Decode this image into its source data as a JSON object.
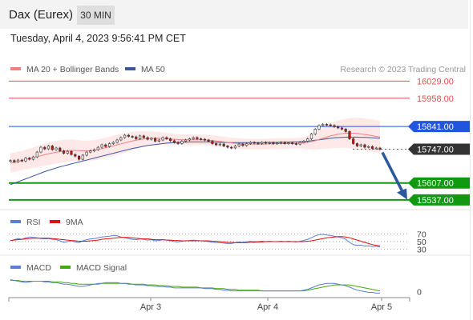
{
  "header": {
    "title": "Dax (Eurex)",
    "timeframe": "30 MIN",
    "datetime": "Tuesday, April 4, 2023 9:56:41 PM CET"
  },
  "colors": {
    "ma20": "#f08080",
    "ma50": "#3b5998",
    "bollinger_fill": "#fde0e0",
    "resistance": "#e05050",
    "pivot": "#2255dd",
    "support": "#119911",
    "last_price_box": "#333333",
    "arrow": "#2a5a9a",
    "rsi": "#5b7fd6",
    "rsi_ma": "#dd1111",
    "macd": "#5b7fd6",
    "macd_signal": "#44aa11",
    "up_candle": "#ffffff",
    "down_candle": "#cc1111"
  },
  "chart_data": [
    {
      "type": "line",
      "panel": "price",
      "legend": [
        {
          "name": "MA 20 + Bollinger Bands",
          "color": "#f08080"
        },
        {
          "name": "MA 50",
          "color": "#3b5998"
        }
      ],
      "watermark": "Research © 2023 Trading Central",
      "x_ticks": [
        "Apr 3",
        "Apr 4",
        "Apr 5"
      ],
      "ylim": [
        15520,
        16050
      ],
      "levels": [
        {
          "label": "16029.00",
          "value": 16029,
          "kind": "resistance"
        },
        {
          "label": "15958.00",
          "value": 15958,
          "kind": "resistance"
        },
        {
          "label": "15841.00",
          "value": 15841,
          "kind": "pivot"
        },
        {
          "label": "15747.00",
          "value": 15747,
          "kind": "last"
        },
        {
          "label": "15607.00",
          "value": 15607,
          "kind": "support"
        },
        {
          "label": "15537.00",
          "value": 15537,
          "kind": "support"
        }
      ],
      "closes": [
        15700,
        15695,
        15702,
        15698,
        15710,
        15705,
        15715,
        15735,
        15755,
        15748,
        15760,
        15745,
        15752,
        15740,
        15730,
        15738,
        15725,
        15718,
        15705,
        15722,
        15735,
        15740,
        15745,
        15755,
        15765,
        15758,
        15770,
        15775,
        15785,
        15795,
        15805,
        15800,
        15798,
        15790,
        15802,
        15795,
        15788,
        15792,
        15780,
        15785,
        15795,
        15790,
        15782,
        15775,
        15770,
        15780,
        15785,
        15790,
        15795,
        15790,
        15788,
        15785,
        15780,
        15770,
        15765,
        15768,
        15760,
        15755,
        15752,
        15760,
        15768,
        15762,
        15770,
        15775,
        15772,
        15770,
        15775,
        15772,
        15774,
        15770,
        15772,
        15775,
        15770,
        15773,
        15770,
        15768,
        15775,
        15780,
        15790,
        15810,
        15830,
        15845,
        15850,
        15848,
        15845,
        15840,
        15835,
        15830,
        15820,
        15790,
        15770,
        15760,
        15765,
        15755,
        15758,
        15750,
        15752,
        15747
      ],
      "ma20": [
        15690,
        15692,
        15696,
        15700,
        15704,
        15708,
        15712,
        15716,
        15720,
        15724,
        15728,
        15731,
        15734,
        15737,
        15739,
        15741,
        15742,
        15742,
        15741,
        15740,
        15740,
        15741,
        15743,
        15746,
        15749,
        15753,
        15757,
        15761,
        15765,
        15769,
        15773,
        15777,
        15781,
        15784,
        15787,
        15789,
        15791,
        15792,
        15792,
        15792,
        15791,
        15790,
        15789,
        15788,
        15787,
        15786,
        15786,
        15786,
        15786,
        15786,
        15786,
        15785,
        15784,
        15783,
        15781,
        15779,
        15777,
        15775,
        15773,
        15771,
        15770,
        15769,
        15768,
        15768,
        15768,
        15768,
        15768,
        15768,
        15769,
        15769,
        15770,
        15770,
        15770,
        15771,
        15771,
        15771,
        15772,
        15773,
        15775,
        15778,
        15782,
        15787,
        15792,
        15797,
        15802,
        15806,
        15809,
        15811,
        15813,
        15814,
        15813,
        15812,
        15810,
        15808,
        15806,
        15803,
        15800,
        15797
      ],
      "ma50": [
        15600,
        15606,
        15612,
        15618,
        15624,
        15630,
        15636,
        15642,
        15648,
        15654,
        15659,
        15664,
        15669,
        15674,
        15678,
        15682,
        15686,
        15690,
        15694,
        15698,
        15702,
        15706,
        15710,
        15714,
        15718,
        15722,
        15726,
        15730,
        15734,
        15738,
        15742,
        15746,
        15750,
        15753,
        15756,
        15759,
        15762,
        15764,
        15766,
        15768,
        15770,
        15772,
        15773,
        15774,
        15775,
        15776,
        15776,
        15777,
        15777,
        15777,
        15777,
        15777,
        15777,
        15776,
        15776,
        15775,
        15775,
        15774,
        15774,
        15774,
        15774,
        15774,
        15774,
        15774,
        15774,
        15774,
        15774,
        15775,
        15775,
        15775,
        15775,
        15776,
        15776,
        15776,
        15777,
        15777,
        15778,
        15779,
        15780,
        15782,
        15784,
        15786,
        15788,
        15790,
        15792,
        15794,
        15795,
        15796,
        15797,
        15797,
        15797,
        15797,
        15796,
        15796,
        15795,
        15794,
        15793,
        15792
      ],
      "bb_width": [
        40,
        40,
        40,
        40,
        40,
        42,
        42,
        44,
        45,
        46,
        47,
        47,
        47,
        47,
        47,
        46,
        45,
        44,
        43,
        42,
        42,
        42,
        42,
        42,
        42,
        42,
        42,
        42,
        42,
        42,
        40,
        40,
        38,
        36,
        34,
        32,
        30,
        28,
        27,
        26,
        25,
        24,
        23,
        22,
        22,
        22,
        22,
        22,
        22,
        22,
        22,
        22,
        22,
        22,
        22,
        22,
        22,
        22,
        22,
        22,
        22,
        22,
        22,
        22,
        22,
        22,
        22,
        22,
        22,
        22,
        22,
        22,
        22,
        22,
        22,
        22,
        22,
        24,
        28,
        32,
        36,
        40,
        44,
        48,
        52,
        54,
        56,
        58,
        60,
        62,
        64,
        66,
        66,
        66,
        66,
        66,
        66,
        66
      ],
      "forecast_arrow": {
        "from_value": 15740,
        "to_value": 15545
      }
    },
    {
      "type": "line",
      "panel": "rsi",
      "legend": [
        {
          "name": "RSI",
          "color": "#5b7fd6"
        },
        {
          "name": "9MA",
          "color": "#dd1111"
        }
      ],
      "ylim": [
        25,
        75
      ],
      "y_ticks": [
        "70",
        "50",
        "30"
      ],
      "y_tick_values": [
        70,
        50,
        30
      ],
      "rsi": [
        52,
        55,
        58,
        56,
        60,
        62,
        61,
        60,
        58,
        57,
        58,
        56,
        55,
        52,
        48,
        50,
        52,
        49,
        47,
        52,
        55,
        57,
        58,
        60,
        62,
        63,
        64,
        66,
        65,
        62,
        60,
        58,
        56,
        55,
        57,
        56,
        54,
        55,
        52,
        53,
        55,
        54,
        52,
        50,
        49,
        51,
        52,
        53,
        54,
        53,
        52,
        51,
        50,
        48,
        47,
        47,
        46,
        45,
        45,
        47,
        49,
        48,
        50,
        51,
        50,
        50,
        51,
        50,
        51,
        50,
        50,
        51,
        50,
        51,
        50,
        49,
        51,
        53,
        56,
        60,
        65,
        68,
        69,
        67,
        66,
        64,
        62,
        60,
        56,
        48,
        42,
        40,
        41,
        38,
        39,
        37,
        38,
        36
      ],
      "rsi_ma": [
        53,
        54,
        55,
        56,
        57,
        58,
        59,
        59,
        59,
        59,
        59,
        58,
        57,
        56,
        55,
        54,
        53,
        52,
        51,
        51,
        51,
        52,
        53,
        54,
        56,
        57,
        58,
        59,
        60,
        61,
        61,
        61,
        60,
        59,
        58,
        57,
        57,
        56,
        55,
        55,
        55,
        54,
        54,
        53,
        53,
        52,
        52,
        52,
        52,
        52,
        52,
        52,
        52,
        51,
        51,
        50,
        49,
        48,
        48,
        47,
        47,
        47,
        47,
        48,
        48,
        49,
        49,
        50,
        50,
        50,
        50,
        50,
        50,
        50,
        50,
        50,
        50,
        50,
        51,
        52,
        54,
        56,
        58,
        60,
        61,
        62,
        63,
        63,
        62,
        60,
        57,
        54,
        51,
        48,
        45,
        42,
        40,
        39
      ]
    },
    {
      "type": "line",
      "panel": "macd",
      "legend": [
        {
          "name": "MACD",
          "color": "#5b7fd6"
        },
        {
          "name": "MACD Signal",
          "color": "#44aa11"
        }
      ],
      "ylim": [
        -8,
        22
      ],
      "y_ticks": [
        "0"
      ],
      "y_tick_values": [
        0
      ],
      "macd": [
        16,
        15,
        14,
        13,
        12,
        13,
        14,
        14,
        14,
        13,
        13,
        12,
        12,
        11,
        10,
        10,
        9,
        8,
        7,
        7,
        8,
        9,
        10,
        11,
        11,
        12,
        12,
        12,
        12,
        11,
        11,
        10,
        10,
        9,
        9,
        9,
        8,
        8,
        7,
        7,
        7,
        6,
        6,
        5,
        5,
        5,
        5,
        5,
        5,
        5,
        5,
        4,
        4,
        4,
        3,
        3,
        2,
        2,
        1,
        1,
        1,
        1,
        1,
        1,
        1,
        1,
        1,
        1,
        1,
        1,
        1,
        1,
        1,
        1,
        1,
        1,
        1,
        2,
        3,
        5,
        7,
        9,
        10,
        11,
        11,
        11,
        10,
        9,
        8,
        6,
        4,
        2,
        1,
        0,
        -1,
        -1,
        -2,
        -2
      ],
      "macd_signal": [
        15,
        15,
        15,
        14,
        14,
        14,
        14,
        14,
        14,
        14,
        14,
        13,
        13,
        13,
        12,
        12,
        11,
        11,
        10,
        10,
        10,
        10,
        10,
        10,
        11,
        11,
        11,
        11,
        11,
        11,
        11,
        11,
        10,
        10,
        10,
        10,
        9,
        9,
        9,
        8,
        8,
        8,
        7,
        7,
        7,
        6,
        6,
        6,
        6,
        6,
        5,
        5,
        5,
        5,
        4,
        4,
        4,
        3,
        3,
        3,
        2,
        2,
        2,
        2,
        2,
        2,
        1,
        1,
        1,
        1,
        1,
        1,
        1,
        1,
        1,
        1,
        1,
        1,
        2,
        3,
        4,
        5,
        6,
        7,
        8,
        9,
        9,
        9,
        9,
        9,
        8,
        7,
        6,
        5,
        4,
        3,
        2,
        1
      ]
    }
  ]
}
